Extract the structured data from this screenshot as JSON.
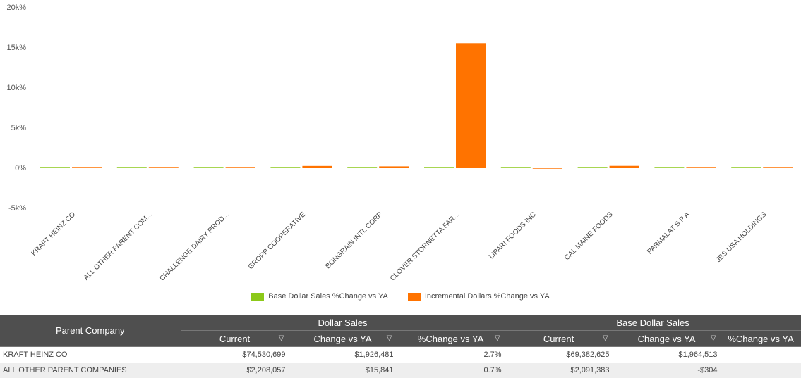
{
  "chart_data": {
    "type": "bar",
    "categories": [
      "KRAFT HEINZ CO",
      "ALL OTHER PARENT COM...",
      "CHALLENGE DAIRY PROD...",
      "GROPP COOPERATIVE",
      "BONGRAIN INTL CORP",
      "CLOVER STORNETTA FAR...",
      "LIPARI FOODS INC",
      "CAL MAINE FOODS",
      "PARMALAT S P A",
      "JBS USA HOLDINGS"
    ],
    "series": [
      {
        "name": "Base Dollar Sales %Change vs YA",
        "color": "#8cc919",
        "values": [
          2.8,
          -0.01,
          40,
          60,
          55,
          120,
          35,
          -20,
          50,
          0
        ]
      },
      {
        "name": "Incremental Dollars %Change vs YA",
        "color": "#ff7300",
        "values": [
          -20,
          80,
          -60,
          190,
          140,
          15500,
          -150,
          200,
          -120,
          0
        ]
      }
    ],
    "ylim": [
      -5000,
      20000
    ],
    "yticks": [
      -5000,
      0,
      5000,
      10000,
      15000,
      20000
    ],
    "ytick_labels": [
      "-5k%",
      "0%",
      "5k%",
      "10k%",
      "15k%",
      "20k%"
    ],
    "legend_position": "bottom-center"
  },
  "table": {
    "group_headers": {
      "parent_company": "Parent Company",
      "dollar_sales": "Dollar Sales",
      "base_dollar_sales": "Base Dollar Sales"
    },
    "sub_headers": [
      "Current",
      "Change vs YA",
      "%Change vs YA",
      "Current",
      "Change vs YA",
      "%Change vs YA"
    ],
    "filter_icon": "filter-icon",
    "rows": [
      {
        "company": "KRAFT HEINZ CO",
        "cells": [
          "$74,530,699",
          "$1,926,481",
          "2.7%",
          "$69,382,625",
          "$1,964,513",
          ""
        ]
      },
      {
        "company": "ALL OTHER PARENT COMPANIES",
        "cells": [
          "$2,208,057",
          "$15,841",
          "0.7%",
          "$2,091,383",
          "-$304",
          ""
        ]
      }
    ]
  }
}
